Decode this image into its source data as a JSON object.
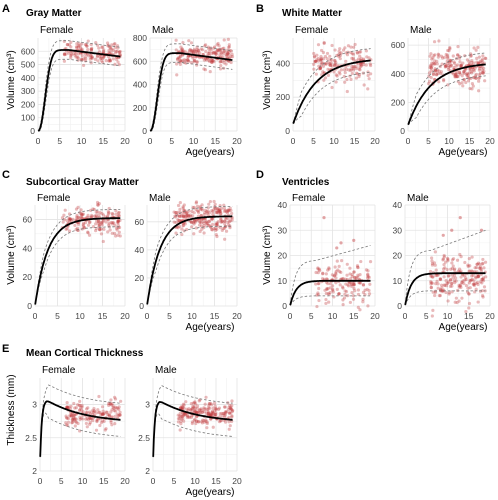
{
  "figure": {
    "colors": {
      "point": "#c0393b",
      "median": "#000000",
      "percentile": "#777777",
      "grid_major": "#e3e3e3",
      "grid_minor": "#f1f1f1",
      "background": "#ffffff"
    },
    "grid": true,
    "legend": "none"
  },
  "chart_data": [
    {
      "letter": "A",
      "title": "Gray Matter",
      "type": "scatter",
      "ylabel": "Volume (cm³)",
      "xlabel": "Age(years)",
      "xlim": [
        0,
        20
      ],
      "xticks": [
        0,
        5,
        10,
        15,
        20
      ],
      "facets": [
        {
          "label": "Female",
          "ylim": [
            0,
            700
          ],
          "yticks": [
            0,
            100,
            200,
            300,
            400,
            500,
            600
          ],
          "curve": {
            "type": "median",
            "plateau": 610,
            "peak_age": 7,
            "end_value": 560,
            "start_value": 0
          },
          "band": {
            "upper_offset": 70,
            "lower_offset": -70
          },
          "points": {
            "n": 160,
            "age_range": [
              6,
              19
            ],
            "center": 590,
            "spread": 40
          }
        },
        {
          "label": "Male",
          "ylim": [
            0,
            800
          ],
          "yticks": [
            0,
            200,
            400,
            600,
            800
          ],
          "curve": {
            "type": "median",
            "plateau": 670,
            "peak_age": 7,
            "end_value": 610,
            "start_value": 0
          },
          "band": {
            "upper_offset": 80,
            "lower_offset": -80
          },
          "points": {
            "n": 200,
            "age_range": [
              6,
              19
            ],
            "center": 650,
            "spread": 48
          }
        }
      ]
    },
    {
      "letter": "B",
      "title": "White Matter",
      "type": "scatter",
      "ylabel": "Volume (cm³)",
      "xlabel": "Age(years)",
      "xlim": [
        0,
        20
      ],
      "xticks": [
        0,
        5,
        10,
        15,
        20
      ],
      "facets": [
        {
          "label": "Female",
          "ylim": [
            0,
            550
          ],
          "yticks": [
            0,
            200,
            400
          ],
          "curve": {
            "type": "saturating",
            "start": 40,
            "end": 430,
            "rate": 0.18
          },
          "band": {
            "upper_offset": 70,
            "lower_offset": -70
          },
          "points": {
            "n": 180,
            "age_range": [
              5,
              19
            ],
            "center": 390,
            "spread": 55
          }
        },
        {
          "label": "Male",
          "ylim": [
            0,
            650
          ],
          "yticks": [
            0,
            200,
            400,
            600
          ],
          "curve": {
            "type": "saturating",
            "start": 40,
            "end": 480,
            "rate": 0.18
          },
          "band": {
            "upper_offset": 80,
            "lower_offset": -80
          },
          "points": {
            "n": 230,
            "age_range": [
              5,
              19
            ],
            "center": 440,
            "spread": 60
          }
        }
      ]
    },
    {
      "letter": "C",
      "title": "Subcortical Gray Matter",
      "type": "scatter",
      "ylabel": "Volume (cm³)",
      "xlabel": "Age(years)",
      "xlim": [
        0,
        20
      ],
      "xticks": [
        0,
        5,
        10,
        15,
        20
      ],
      "facets": [
        {
          "label": "Female",
          "ylim": [
            0,
            70
          ],
          "yticks": [
            0,
            20,
            40,
            60
          ],
          "curve": {
            "type": "saturating",
            "start": 0,
            "end": 61,
            "rate": 0.35
          },
          "band": {
            "upper_offset": 6,
            "lower_offset": -6
          },
          "points": {
            "n": 180,
            "age_range": [
              6,
              19
            ],
            "center": 59,
            "spread": 5
          }
        },
        {
          "label": "Male",
          "ylim": [
            0,
            72
          ],
          "yticks": [
            0,
            20,
            40,
            60
          ],
          "curve": {
            "type": "saturating",
            "start": 0,
            "end": 64,
            "rate": 0.35
          },
          "band": {
            "upper_offset": 7,
            "lower_offset": -7
          },
          "points": {
            "n": 240,
            "age_range": [
              6,
              19
            ],
            "center": 62,
            "spread": 5.5
          }
        }
      ]
    },
    {
      "letter": "D",
      "title": "Ventricles",
      "type": "scatter",
      "ylabel": "Volume (cm³)",
      "xlabel": "Age(years)",
      "xlim": [
        0,
        20
      ],
      "xticks": [
        0,
        5,
        10,
        15,
        20
      ],
      "facets": [
        {
          "label": "Female",
          "ylim": [
            0,
            40
          ],
          "yticks": [
            0,
            10,
            20,
            30,
            40
          ],
          "curve": {
            "type": "saturating",
            "start": 0,
            "end": 10,
            "rate": 0.7
          },
          "band": {
            "upper": [
              0,
              18,
              24
            ],
            "lower": [
              0,
              4,
              4
            ]
          },
          "points": {
            "n": 160,
            "age_range": [
              6,
              19
            ],
            "center": 9,
            "spread": 4,
            "outliers": [
              [
                8,
                35
              ],
              [
                12,
                25
              ],
              [
                15,
                26
              ],
              [
                11,
                23
              ]
            ]
          }
        },
        {
          "label": "Male",
          "ylim": [
            0,
            40
          ],
          "yticks": [
            0,
            10,
            20,
            30,
            40
          ],
          "curve": {
            "type": "saturating",
            "start": 0,
            "end": 13,
            "rate": 0.7
          },
          "band": {
            "upper": [
              0,
              22,
              30
            ],
            "lower": [
              0,
              6,
              6
            ]
          },
          "points": {
            "n": 210,
            "age_range": [
              6,
              19
            ],
            "center": 11,
            "spread": 4.5,
            "outliers": [
              [
                13,
                35
              ],
              [
                11,
                30
              ],
              [
                18,
                30
              ],
              [
                9,
                28
              ]
            ]
          }
        }
      ]
    },
    {
      "letter": "E",
      "title": "Mean Cortical Thickness",
      "type": "scatter",
      "ylabel": "Thickness (mm)",
      "xlabel": "Age(years)",
      "xlim": [
        0,
        20
      ],
      "xticks": [
        0,
        5,
        10,
        15,
        20
      ],
      "facets": [
        {
          "label": "Female",
          "ylim": [
            2.0,
            3.4
          ],
          "yticks": [
            2.0,
            2.5,
            3.0
          ],
          "curve": {
            "type": "thickness",
            "start": 2.1,
            "peak": 3.07,
            "end": 2.77
          },
          "band": {
            "upper_offset": 0.25,
            "lower_offset": -0.25
          },
          "points": {
            "n": 170,
            "age_range": [
              6,
              19
            ],
            "center": 2.85,
            "spread": 0.1
          }
        },
        {
          "label": "Male",
          "ylim": [
            2.0,
            3.4
          ],
          "yticks": [
            2.0,
            2.5,
            3.0
          ],
          "curve": {
            "type": "thickness",
            "start": 2.1,
            "peak": 3.06,
            "end": 2.77
          },
          "band": {
            "upper_offset": 0.25,
            "lower_offset": -0.25
          },
          "points": {
            "n": 210,
            "age_range": [
              6,
              19
            ],
            "center": 2.86,
            "spread": 0.1
          }
        }
      ]
    }
  ]
}
